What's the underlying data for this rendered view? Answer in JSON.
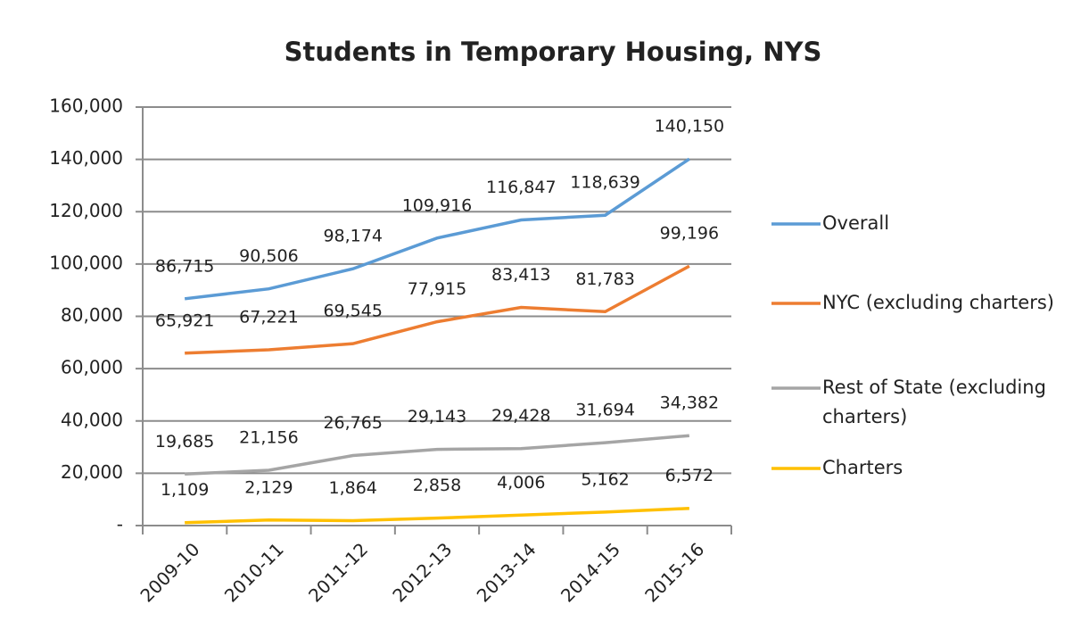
{
  "chart_data": {
    "type": "line",
    "title": "Students in Temporary Housing, NYS",
    "categories": [
      "2009-10",
      "2010-11",
      "2011-12",
      "2012-13",
      "2013-14",
      "2014-15",
      "2015-16"
    ],
    "series": [
      {
        "name": "Overall",
        "color": "#5b9bd5",
        "values": [
          86715,
          90506,
          98174,
          109916,
          116847,
          118639,
          140150
        ],
        "value_labels": [
          "86,715",
          "90,506",
          "98,174",
          "109,916",
          "116,847",
          "118,639",
          "140,150"
        ]
      },
      {
        "name": "NYC (excluding charters)",
        "color": "#ed7d31",
        "values": [
          65921,
          67221,
          69545,
          77915,
          83413,
          81783,
          99196
        ],
        "value_labels": [
          "65,921",
          "67,221",
          "69,545",
          "77,915",
          "83,413",
          "81,783",
          "99,196"
        ]
      },
      {
        "name": "Rest of State (excluding charters)",
        "color": "#a5a5a5",
        "values": [
          19685,
          21156,
          26765,
          29143,
          29428,
          31694,
          34382
        ],
        "value_labels": [
          "19,685",
          "21,156",
          "26,765",
          "29,143",
          "29,428",
          "31,694",
          "34,382"
        ]
      },
      {
        "name": "Charters",
        "color": "#ffc000",
        "values": [
          1109,
          2129,
          1864,
          2858,
          4006,
          5162,
          6572
        ],
        "value_labels": [
          "1,109",
          "2,129",
          "1,864",
          "2,858",
          "4,006",
          "5,162",
          "6,572"
        ]
      }
    ],
    "ylim": [
      0,
      160000
    ],
    "yticks": [
      {
        "value": 0,
        "label": "-"
      },
      {
        "value": 20000,
        "label": "20,000"
      },
      {
        "value": 40000,
        "label": "40,000"
      },
      {
        "value": 60000,
        "label": "60,000"
      },
      {
        "value": 80000,
        "label": "80,000"
      },
      {
        "value": 100000,
        "label": "100,000"
      },
      {
        "value": 120000,
        "label": "120,000"
      },
      {
        "value": 140000,
        "label": "140,000"
      },
      {
        "value": 160000,
        "label": "160,000"
      }
    ],
    "grid": true,
    "legend": "right"
  }
}
